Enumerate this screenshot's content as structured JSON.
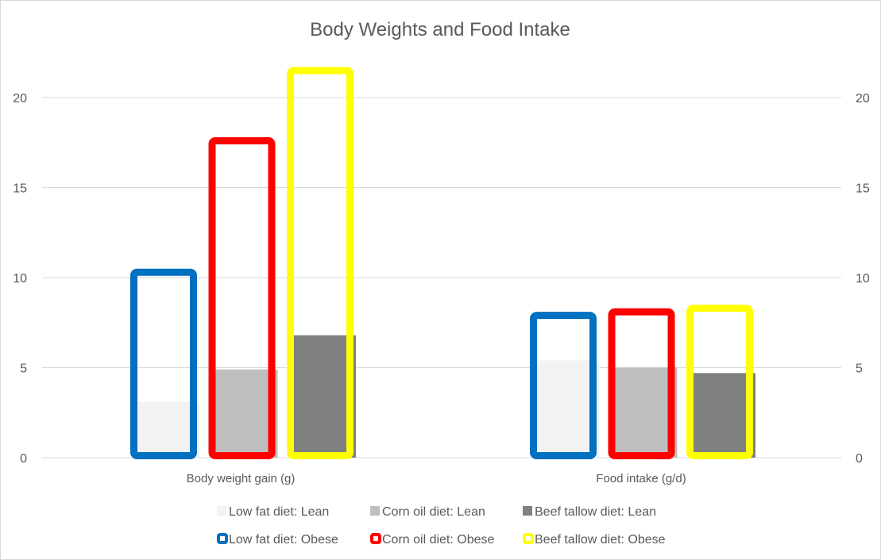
{
  "chart_data": {
    "type": "bar",
    "title": "Body Weights and Food Intake",
    "categories": [
      "Body weight gain (g)",
      "Food intake (g/d)"
    ],
    "ylim": [
      0,
      22
    ],
    "yticks": [
      0,
      5,
      10,
      15,
      20
    ],
    "secondary_axis_ticks": [
      0,
      5,
      10,
      15,
      20
    ],
    "grid": true,
    "legend_position": "bottom",
    "series": [
      {
        "name": "Low fat diet: Lean",
        "values": [
          3.1,
          5.4
        ],
        "style": "filled",
        "color": "#f2f2f2"
      },
      {
        "name": "Corn oil diet: Lean",
        "values": [
          4.9,
          5.0
        ],
        "style": "filled",
        "color": "#bfbfbf"
      },
      {
        "name": "Beef tallow diet: Lean",
        "values": [
          6.8,
          4.7
        ],
        "style": "filled",
        "color": "#808080"
      },
      {
        "name": "Low fat diet: Obese",
        "values": [
          10.3,
          7.9
        ],
        "style": "outline",
        "color": "#0070c0"
      },
      {
        "name": "Corn oil diet: Obese",
        "values": [
          17.6,
          8.1
        ],
        "style": "outline",
        "color": "#ff0000"
      },
      {
        "name": "Beef tallow diet: Obese",
        "values": [
          21.5,
          8.3
        ],
        "style": "outline",
        "color": "#ffff00"
      }
    ]
  }
}
